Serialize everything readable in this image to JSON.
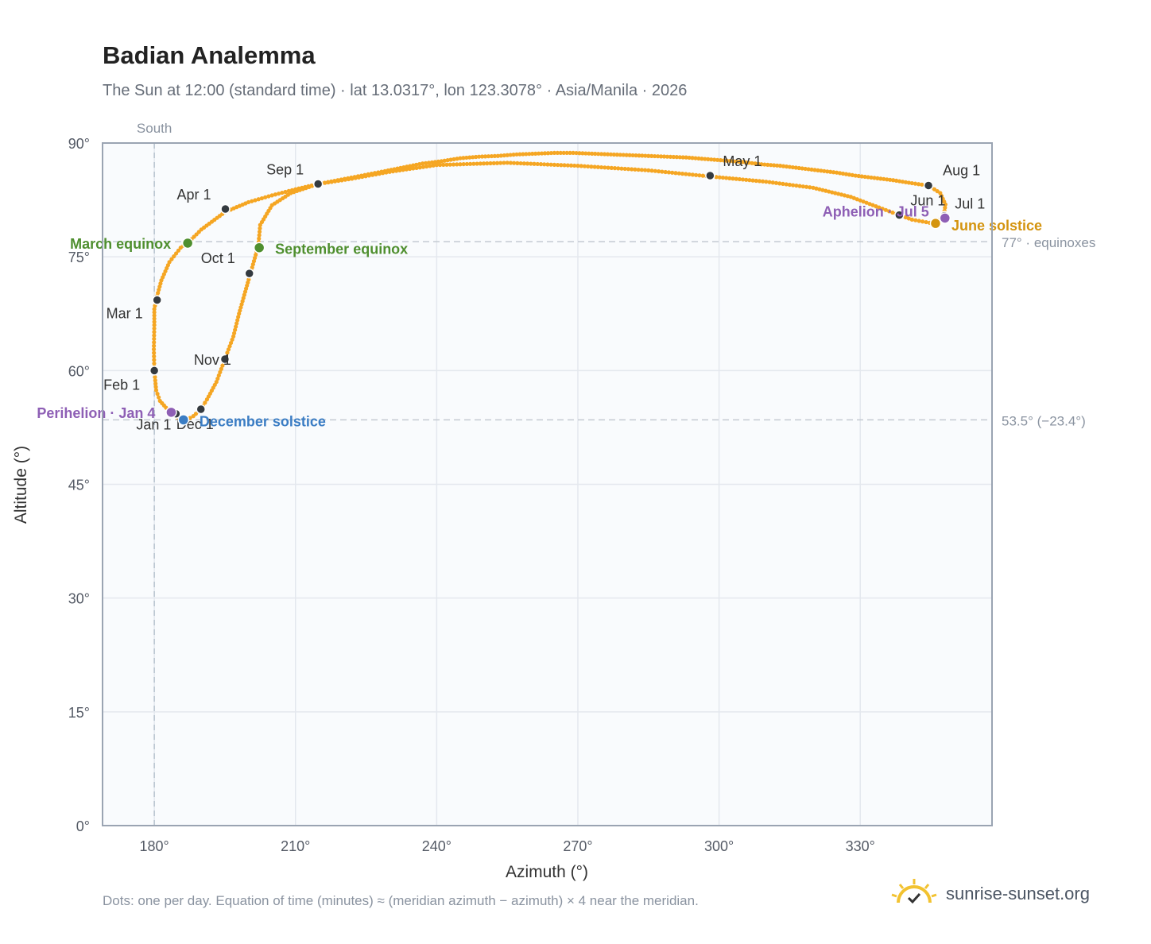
{
  "title": "Badian Analemma",
  "subtitle": "The Sun at 12:00 (standard time) · lat 13.0317°, lon 123.3078° · Asia/Manila · 2026",
  "footnote": "Dots: one per day. Equation of time (minutes) ≈ (meridian azimuth − azimuth) × 4 near the meridian.",
  "brand": {
    "name": "sunrise-sunset.org",
    "icon": "sun-logo-icon"
  },
  "colors": {
    "curve": "#f5a623",
    "month_marker": "#343a40",
    "equinox": "#4f8f2f",
    "december_solstice": "#3b7dc4",
    "june_solstice": "#d4940f",
    "apsis": "#8e5fb5",
    "plot_bg": "#f9fbfd",
    "grid": "#e4e8ee",
    "frame": "#9aa4b2"
  },
  "chart_data": {
    "type": "scatter",
    "title": "Badian Analemma",
    "xlabel": "Azimuth (°)",
    "ylabel": "Altitude (°)",
    "xlim": [
      169,
      358
    ],
    "ylim": [
      0,
      90
    ],
    "xticks": [
      180,
      210,
      240,
      270,
      300,
      330
    ],
    "xtick_labels": [
      "180°",
      "210°",
      "240°",
      "270°",
      "300°",
      "330°"
    ],
    "yticks": [
      0,
      15,
      30,
      45,
      60,
      75,
      90
    ],
    "ytick_labels": [
      "0°",
      "15°",
      "30°",
      "45°",
      "60°",
      "75°",
      "90°"
    ],
    "grid": true,
    "meridian": {
      "azimuth": 180,
      "label": "South"
    },
    "reference_lines": [
      {
        "altitude": 77,
        "label": "77° · equinoxes"
      },
      {
        "altitude": 53.5,
        "label": "53.5° (−23.4°)"
      }
    ],
    "series": [
      {
        "points": [
          [
            184.3,
            54.4
          ],
          [
            182.5,
            55.1
          ],
          [
            181.2,
            56.0
          ],
          [
            180.4,
            57.4
          ],
          [
            180.0,
            60.0
          ],
          [
            179.9,
            62.8
          ],
          [
            180.0,
            66.0
          ],
          [
            180.0,
            68.1
          ],
          [
            180.4,
            69.4
          ],
          [
            181.5,
            71.9
          ],
          [
            183.2,
            74.3
          ],
          [
            185.6,
            76.2
          ],
          [
            187.4,
            77.0
          ],
          [
            190.0,
            78.6
          ],
          [
            195.0,
            80.9
          ],
          [
            200.0,
            82.2
          ],
          [
            205.0,
            83.1
          ],
          [
            210.0,
            83.9
          ],
          [
            214.8,
            84.6
          ],
          [
            219.0,
            85.1
          ],
          [
            224.0,
            85.7
          ],
          [
            229.0,
            86.3
          ],
          [
            233.0,
            86.8
          ],
          [
            237.0,
            87.3
          ],
          [
            241.0,
            87.6
          ],
          [
            245.0,
            88.0
          ],
          [
            249.0,
            88.2
          ],
          [
            253.0,
            88.3
          ],
          [
            257.0,
            88.5
          ],
          [
            261.0,
            88.6
          ],
          [
            265.0,
            88.7
          ],
          [
            269.0,
            88.7
          ],
          [
            273.0,
            88.6
          ],
          [
            277.0,
            88.5
          ],
          [
            281.0,
            88.4
          ],
          [
            285.0,
            88.3
          ],
          [
            289.0,
            88.2
          ],
          [
            293.0,
            88.1
          ],
          [
            297.0,
            87.9
          ],
          [
            301.0,
            87.7
          ],
          [
            305.0,
            87.5
          ],
          [
            309.0,
            87.2
          ],
          [
            313.0,
            87.0
          ],
          [
            317.0,
            86.7
          ],
          [
            321.0,
            86.4
          ],
          [
            325.0,
            86.1
          ],
          [
            329.0,
            85.7
          ],
          [
            333.0,
            85.4
          ],
          [
            337.0,
            85.1
          ],
          [
            341.0,
            84.7
          ],
          [
            344.5,
            84.4
          ],
          [
            347.0,
            83.4
          ],
          [
            348.1,
            81.9
          ],
          [
            347.7,
            80.2
          ],
          [
            345.5,
            79.4
          ],
          [
            341.0,
            79.9
          ],
          [
            338.3,
            80.5
          ],
          [
            334.0,
            81.5
          ],
          [
            328.0,
            82.9
          ],
          [
            320.0,
            84.1
          ],
          [
            310.0,
            84.9
          ],
          [
            298.0,
            85.6
          ],
          [
            285.0,
            86.4
          ],
          [
            270.0,
            87.0
          ],
          [
            255.0,
            87.4
          ],
          [
            240.0,
            87.1
          ],
          [
            230.0,
            86.2
          ],
          [
            222.0,
            85.3
          ],
          [
            214.8,
            84.6
          ],
          [
            209.0,
            83.4
          ],
          [
            205.0,
            81.8
          ],
          [
            202.5,
            79.2
          ],
          [
            202.1,
            76.5
          ],
          [
            200.8,
            73.6
          ],
          [
            199.5,
            70.8
          ],
          [
            198.0,
            67.5
          ],
          [
            196.8,
            64.5
          ],
          [
            195.0,
            61.5
          ],
          [
            193.2,
            58.5
          ],
          [
            191.2,
            56.2
          ],
          [
            189.9,
            54.9
          ],
          [
            188.3,
            54.0
          ],
          [
            186.9,
            53.5
          ],
          [
            184.9,
            53.8
          ],
          [
            184.3,
            54.4
          ]
        ]
      }
    ],
    "month_markers": [
      {
        "label": "Jan 1",
        "azimuth": 184.6,
        "altitude": 54.3
      },
      {
        "label": "Feb 1",
        "azimuth": 180.0,
        "altitude": 60.0
      },
      {
        "label": "Mar 1",
        "azimuth": 180.6,
        "altitude": 69.3
      },
      {
        "label": "Apr 1",
        "azimuth": 195.1,
        "altitude": 81.3
      },
      {
        "label": "May 1",
        "azimuth": 298.1,
        "altitude": 85.7
      },
      {
        "label": "Jun 1",
        "azimuth": 338.3,
        "altitude": 80.5
      },
      {
        "label": "Jul 1",
        "azimuth": 347.9,
        "altitude": 80.4
      },
      {
        "label": "Aug 1",
        "azimuth": 344.5,
        "altitude": 84.4
      },
      {
        "label": "Sep 1",
        "azimuth": 214.8,
        "altitude": 84.6
      },
      {
        "label": "Oct 1",
        "azimuth": 200.2,
        "altitude": 72.8
      },
      {
        "label": "Nov 1",
        "azimuth": 195.0,
        "altitude": 61.5
      },
      {
        "label": "Dec 1",
        "azimuth": 189.9,
        "altitude": 54.9
      }
    ],
    "events": [
      {
        "label": "March equinox",
        "azimuth": 187.1,
        "altitude": 76.8,
        "color": "#4f8f2f"
      },
      {
        "label": "September equinox",
        "azimuth": 202.3,
        "altitude": 76.2,
        "color": "#4f8f2f"
      },
      {
        "label": "December solstice",
        "azimuth": 186.2,
        "altitude": 53.5,
        "color": "#3b7dc4"
      },
      {
        "label": "June solstice",
        "azimuth": 346.0,
        "altitude": 79.4,
        "color": "#d4940f"
      },
      {
        "label": "Perihelion · Jan 4",
        "azimuth": 183.6,
        "altitude": 54.5,
        "color": "#8e5fb5"
      },
      {
        "label": "Aphelion · Jul 5",
        "azimuth": 348.0,
        "altitude": 80.1,
        "color": "#8e5fb5"
      }
    ]
  }
}
